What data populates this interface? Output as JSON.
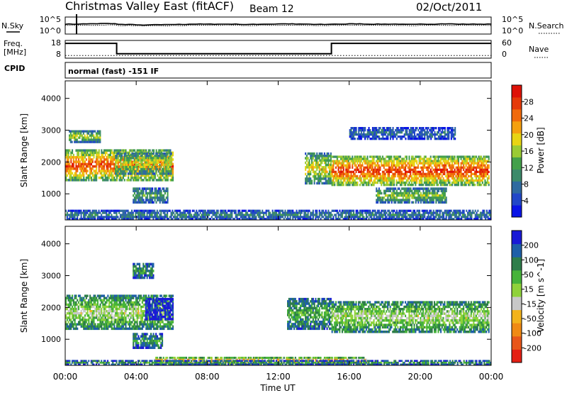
{
  "header": {
    "title": "Christmas Valley East (fitACF)",
    "beam": "Beam 12",
    "date": "02/Oct/2011"
  },
  "noise_panel": {
    "left_label": "N.Sky",
    "right_label": "N.Search",
    "left_ticks": [
      "10^5",
      "10^0"
    ],
    "right_ticks": [
      "10^5",
      "10^0"
    ]
  },
  "freq_panel": {
    "left_label_1": "Freq.",
    "left_label_2": "[MHz]",
    "right_label": "Nave",
    "left_ticks": [
      "18",
      "8"
    ],
    "right_ticks": [
      "60",
      "0"
    ]
  },
  "cpid": {
    "label": "CPID",
    "value": "normal (fast) -151 IF"
  },
  "colors": {
    "power_scale": [
      "#0a14e6",
      "#2147c8",
      "#2f6aa0",
      "#3c8a6a",
      "#43a04a",
      "#9acb34",
      "#e8d414",
      "#f5a00f",
      "#f06a0c",
      "#e53a0a",
      "#de1208"
    ],
    "velocity_scale": [
      "#1a1ad6",
      "#1e5fa8",
      "#2e7d4a",
      "#46b33a",
      "#8fd23a",
      "#c8c8c8",
      "#f3b31c",
      "#f08a14",
      "#e8561a",
      "#e42014"
    ]
  },
  "chart_data": [
    {
      "type": "heatmap",
      "name": "power",
      "xlabel": "",
      "ylabel": "Slant Range [km]",
      "colorbar_label": "Power [dB]",
      "colorbar_ticks": [
        "28",
        "24",
        "20",
        "16",
        "12",
        "8",
        "4"
      ],
      "xlim": [
        0,
        24
      ],
      "ylim": [
        180,
        4550
      ],
      "y_ticks": [
        "1000",
        "2000",
        "3000",
        "4000"
      ],
      "bands": [
        {
          "t": [
            0.0,
            6.1
          ],
          "r": [
            1400,
            2400
          ],
          "level": 0.85
        },
        {
          "t": [
            0.2,
            2.0
          ],
          "r": [
            2600,
            3000
          ],
          "level": 0.55
        },
        {
          "t": [
            2.8,
            6.0
          ],
          "r": [
            1600,
            2300
          ],
          "level": 0.6
        },
        {
          "t": [
            3.8,
            5.8
          ],
          "r": [
            700,
            1200
          ],
          "level": 0.4
        },
        {
          "t": [
            0.0,
            24.0
          ],
          "r": [
            180,
            500
          ],
          "level": 0.3
        },
        {
          "t": [
            13.5,
            15.0
          ],
          "r": [
            1300,
            2300
          ],
          "level": 0.6
        },
        {
          "t": [
            15.0,
            23.9
          ],
          "r": [
            1250,
            2200
          ],
          "level": 0.9
        },
        {
          "t": [
            16.0,
            22.0
          ],
          "r": [
            2700,
            3100
          ],
          "level": 0.25
        },
        {
          "t": [
            17.5,
            21.5
          ],
          "r": [
            700,
            1200
          ],
          "level": 0.5
        }
      ]
    },
    {
      "type": "heatmap",
      "name": "velocity",
      "xlabel": "Time UT",
      "ylabel": "Slant Range [km]",
      "colorbar_label": "Velocity [m s^-1]",
      "colorbar_ticks": [
        "200",
        "100",
        "50",
        "15",
        "-15",
        "-50",
        "-100",
        "-200"
      ],
      "xlim": [
        0,
        24
      ],
      "ylim": [
        180,
        4550
      ],
      "x_ticks": [
        "00:00",
        "04:00",
        "08:00",
        "12:00",
        "16:00",
        "20:00",
        "00:00"
      ],
      "y_ticks": [
        "1000",
        "2000",
        "3000",
        "4000"
      ],
      "bands": [
        {
          "t": [
            0.0,
            6.1
          ],
          "r": [
            1300,
            2400
          ],
          "level": 0.5
        },
        {
          "t": [
            3.8,
            5.0
          ],
          "r": [
            2900,
            3400
          ],
          "level": 0.3
        },
        {
          "t": [
            4.5,
            6.1
          ],
          "r": [
            1600,
            2300
          ],
          "level": 0.05
        },
        {
          "t": [
            3.8,
            5.5
          ],
          "r": [
            700,
            1200
          ],
          "level": 0.3
        },
        {
          "t": [
            5.0,
            17.0
          ],
          "r": [
            200,
            450
          ],
          "level": 0.75
        },
        {
          "t": [
            0.0,
            24.0
          ],
          "r": [
            180,
            350
          ],
          "level": 0.3
        },
        {
          "t": [
            12.5,
            15.0
          ],
          "r": [
            1300,
            2300
          ],
          "level": 0.35
        },
        {
          "t": [
            15.0,
            23.9
          ],
          "r": [
            1200,
            2200
          ],
          "level": 0.5
        }
      ]
    }
  ],
  "noise_series": {
    "sky": [
      3.0,
      3.1,
      3.2,
      2.9,
      2.7,
      2.8,
      2.9,
      3.0,
      3.0,
      3.0,
      2.9,
      3.0,
      3.1,
      3.0,
      2.9,
      3.0,
      3.1,
      3.0,
      3.0,
      2.9,
      3.0,
      3.1,
      3.0,
      3.0,
      3.0
    ],
    "search": [
      2.6,
      2.6,
      2.7,
      2.5,
      2.4,
      2.4,
      2.5,
      2.6,
      2.6,
      2.6,
      2.5,
      2.6,
      2.6,
      2.6,
      2.5,
      2.6,
      2.6,
      2.6,
      2.6,
      2.5,
      2.6,
      2.6,
      2.6,
      2.6,
      2.6
    ]
  },
  "freq_series": {
    "t": [
      0,
      2.9,
      2.9,
      15.0,
      15.0,
      24
    ],
    "mhz": [
      17.0,
      17.0,
      10.0,
      10.0,
      17.0,
      17.0
    ],
    "nave": [
      5,
      5,
      5,
      5,
      5,
      5
    ]
  }
}
